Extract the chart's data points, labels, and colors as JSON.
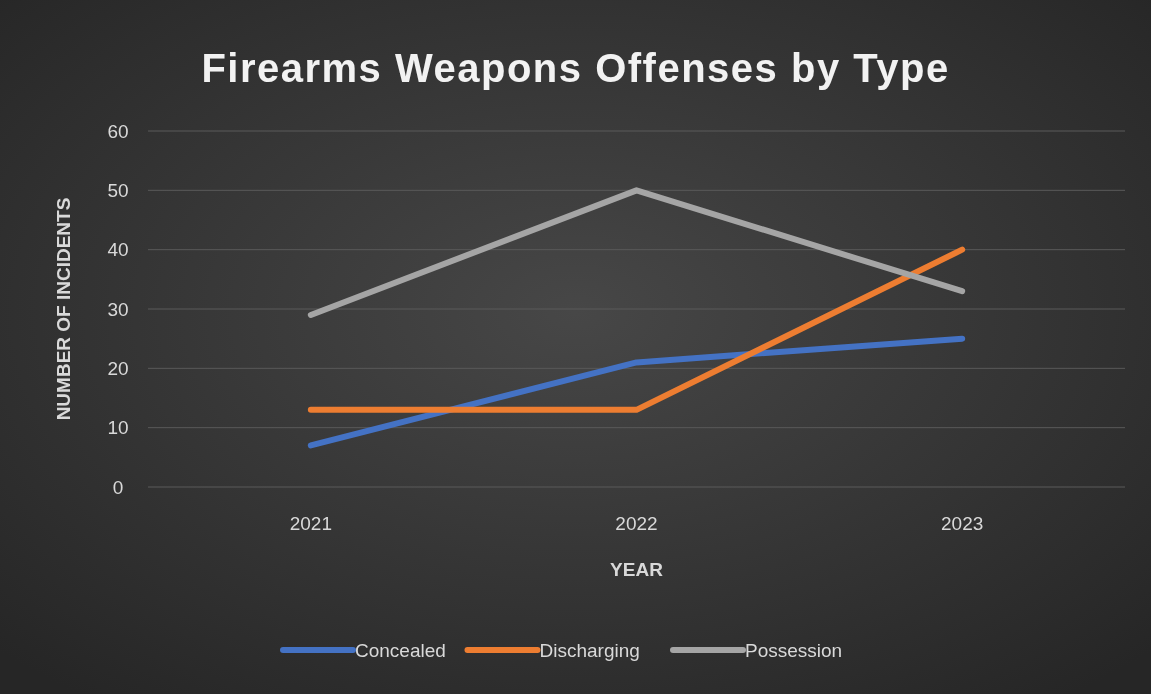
{
  "chart_data": {
    "type": "line",
    "title": "Firearms Weapons Offenses by Type",
    "xlabel": "YEAR",
    "ylabel": "NUMBER OF INCIDENTS",
    "categories": [
      "2021",
      "2022",
      "2023"
    ],
    "series": [
      {
        "name": "Concealed",
        "color": "#4472c4",
        "values": [
          7,
          21,
          25
        ]
      },
      {
        "name": "Discharging",
        "color": "#ed7d31",
        "values": [
          13,
          13,
          40
        ]
      },
      {
        "name": "Possession",
        "color": "#a5a5a5",
        "values": [
          29,
          50,
          33
        ]
      }
    ],
    "ylim": [
      0,
      60
    ],
    "yticks": [
      0,
      10,
      20,
      30,
      40,
      50,
      60
    ],
    "grid": "y",
    "legend": "bottom",
    "marker": "none",
    "line_style": "solid"
  }
}
